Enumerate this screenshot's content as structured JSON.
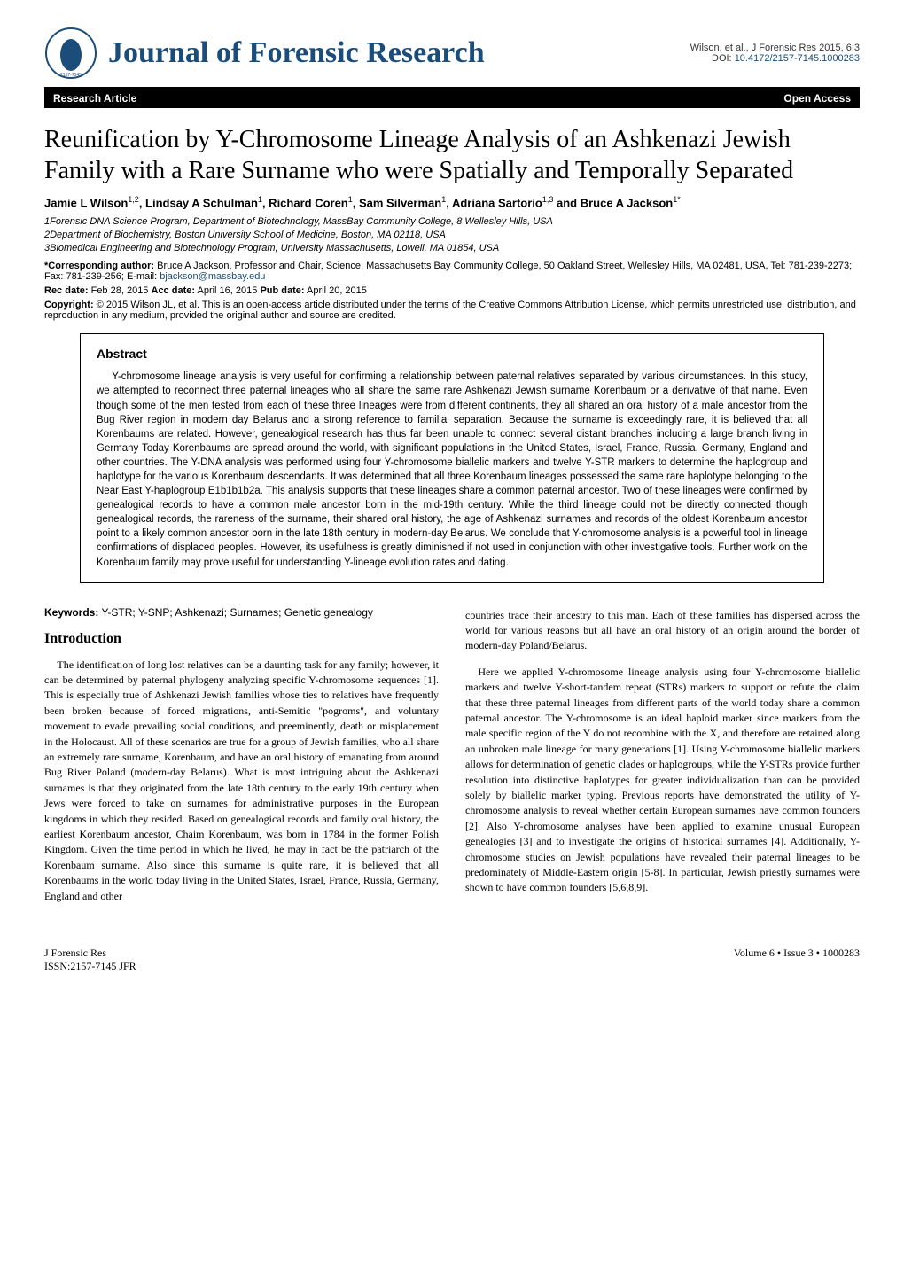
{
  "header": {
    "journal_name": "Journal of Forensic Research",
    "citation_line1": "Wilson, et al., J Forensic Res 2015, 6:3",
    "doi_label": "DOI:",
    "doi": "10.4172/2157-7145.1000283",
    "issn": "ISSN: 2157-7145"
  },
  "badges": {
    "left": "Research Article",
    "right": "Open Access"
  },
  "title": "Reunification by Y-Chromosome Lineage Analysis of an Ashkenazi Jewish Family with a Rare Surname who were Spatially and Temporally Separated",
  "authors_html": "Jamie L Wilson<sup>1,2</sup>, Lindsay A Schulman<sup>1</sup>, Richard Coren<sup>1</sup>, Sam Silverman<sup>1</sup>, Adriana Sartorio<sup>1,3</sup> and Bruce A Jackson<sup>1*</sup>",
  "affiliations": [
    "1Forensic DNA Science Program, Department of Biotechnology, MassBay Community College, 8 Wellesley Hills, USA",
    "2Department of Biochemistry, Boston University School of Medicine, Boston, MA 02118, USA",
    "3Biomedical Engineering and Biotechnology Program, University Massachusetts, Lowell, MA 01854, USA"
  ],
  "corresponding": {
    "label": "*Corresponding author:",
    "text": "Bruce A Jackson, Professor and Chair, Science, Massachusetts Bay Community College, 50 Oakland Street, Wellesley Hills, MA 02481, USA, Tel: 781-239-2273; Fax: 781-239-256; E-mail:",
    "email": "bjackson@massbay.edu"
  },
  "dates": {
    "rec_label": "Rec date:",
    "rec": "Feb 28, 2015",
    "acc_label": "Acc date:",
    "acc": "April 16, 2015",
    "pub_label": "Pub date:",
    "pub": "April 20, 2015"
  },
  "copyright": {
    "label": "Copyright:",
    "text": "© 2015 Wilson JL, et al. This is an open-access article distributed under the terms of the Creative Commons Attribution License, which permits unrestricted use, distribution, and reproduction in any medium, provided the original author and source are credited."
  },
  "abstract": {
    "heading": "Abstract",
    "text": "Y-chromosome lineage analysis is very useful for confirming a relationship between paternal relatives separated by various circumstances. In this study, we attempted to reconnect three paternal lineages who all share the same rare Ashkenazi Jewish surname Korenbaum or a derivative of that name. Even though some of the men tested from each of these three lineages were from different continents, they all shared an oral history of a male ancestor from the Bug River region in modern day Belarus and a strong reference to familial separation. Because the surname is exceedingly rare, it is believed that all Korenbaums are related. However, genealogical research has thus far been unable to connect several distant branches including a large branch living in Germany Today Korenbaums are spread around the world, with significant populations in the United States, Israel, France, Russia, Germany, England and other countries. The Y-DNA analysis was performed using four Y-chromosome biallelic markers and twelve Y-STR markers to determine the haplogroup and haplotype for the various Korenbaum descendants. It was determined that all three Korenbaum lineages possessed the same rare haplotype belonging to the Near East Y-haplogroup E1b1b1b2a. This analysis supports that these lineages share a common paternal ancestor. Two of these lineages were confirmed by genealogical records to have a common male ancestor born in the mid-19th century. While the third lineage could not be directly connected though genealogical records, the rareness of the surname, their shared oral history, the age of Ashkenazi surnames and records of the oldest Korenbaum ancestor point to a likely common ancestor born in the late 18th century in modern-day Belarus. We conclude that Y-chromosome analysis is a powerful tool in lineage confirmations of displaced peoples. However, its usefulness is greatly diminished if not used in conjunction with other investigative tools. Further work on the Korenbaum family may prove useful for understanding Y-lineage evolution rates and dating."
  },
  "keywords": {
    "label": "Keywords:",
    "text": "Y-STR; Y-SNP; Ashkenazi; Surnames; Genetic genealogy"
  },
  "intro_heading": "Introduction",
  "col1_p1": "The identification of long lost relatives can be a daunting task for any family; however, it can be determined by paternal phylogeny analyzing specific Y-chromosome sequences [1]. This is especially true of Ashkenazi Jewish families whose ties to relatives have frequently been broken because of forced migrations, anti-Semitic \"pogroms\", and voluntary movement to evade prevailing social conditions, and preeminently, death or misplacement in the Holocaust. All of these scenarios are true for a group of Jewish families, who all share an extremely rare surname, Korenbaum, and have an oral history of emanating from around Bug River Poland (modern-day Belarus). What is most intriguing about the Ashkenazi surnames is that they originated from the late 18th century to the early 19th century when Jews were forced to take on surnames for administrative purposes in the European kingdoms in which they resided. Based on genealogical records and family oral history, the earliest Korenbaum ancestor, Chaim Korenbaum, was born in 1784 in the former Polish Kingdom. Given the time period in which he lived, he may in fact be the patriarch of the Korenbaum surname. Also since this surname is quite rare, it is believed that all Korenbaums in the world today living in the United States, Israel, France, Russia, Germany, England and other",
  "col2_p1": "countries trace their ancestry to this man. Each of these families has dispersed across the world for various reasons but all have an oral history of an origin around the border of modern-day Poland/Belarus.",
  "col2_p2": "Here we applied Y-chromosome lineage analysis using four Y-chromosome biallelic markers and twelve Y-short-tandem repeat (STRs) markers to support or refute the claim that these three paternal lineages from different parts of the world today share a common paternal ancestor. The Y-chromosome is an ideal haploid marker since markers from the male specific region of the Y do not recombine with the X, and therefore are retained along an unbroken male lineage for many generations [1]. Using Y-chromosome biallelic markers allows for determination of genetic clades or haplogroups, while the Y-STRs provide further resolution into distinctive haplotypes for greater individualization than can be provided solely by biallelic marker typing. Previous reports have demonstrated the utility of Y-chromosome analysis to reveal whether certain European surnames have common founders [2]. Also Y-chromosome analyses have been applied to examine unusual European genealogies [3] and to investigate the origins of historical surnames [4]. Additionally, Y-chromosome studies on Jewish populations have revealed their paternal lineages to be predominately of Middle-Eastern origin [5-8]. In particular, Jewish priestly surnames were shown to have common founders [5,6,8,9].",
  "footer": {
    "left_line1": "J Forensic Res",
    "left_line2": "ISSN:2157-7145 JFR",
    "right": "Volume 6 • Issue 3 • 1000283"
  },
  "colors": {
    "journal_blue": "#1a4d7a",
    "link_blue": "#1a4d7a",
    "badge_bg": "#000000",
    "badge_fg": "#ffffff"
  }
}
